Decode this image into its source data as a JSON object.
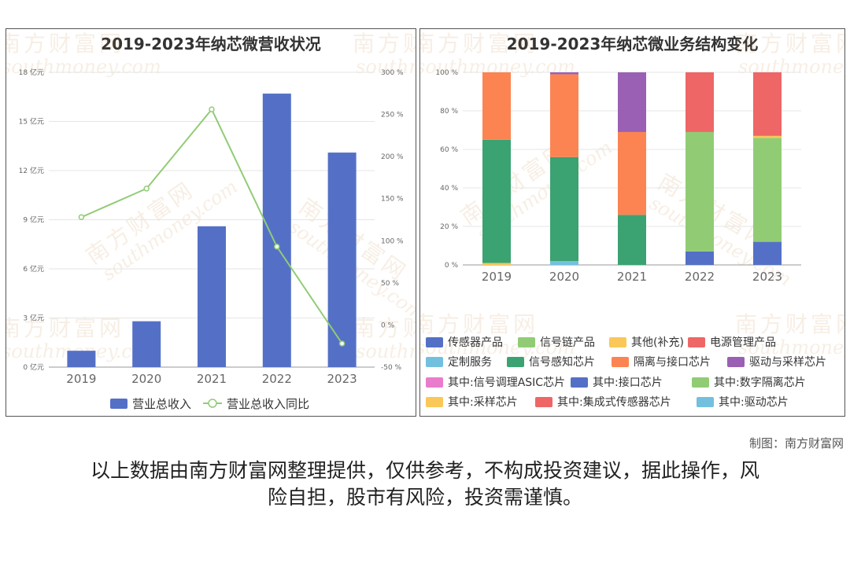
{
  "page": {
    "source_label": "制图：南方财富网",
    "disclaimer_line1": "以上数据由南方财富网整理提供，仅供参考，不构成投资建议，据此操作，风",
    "disclaimer_line2": "险自担，股市有风险，投资需谨慎。"
  },
  "watermark": {
    "brand_cn": "南方财富网",
    "brand_en": "southmoney.com"
  },
  "colors": {
    "bar_blue": "#5470c6",
    "line_green": "#91cc75",
    "grid": "#e6e6e6",
    "axis_text": "#666666"
  },
  "chart_data": [
    {
      "type": "bar",
      "title": "2019-2023年纳芯微营收状况",
      "categories": [
        "2019",
        "2020",
        "2021",
        "2022",
        "2023"
      ],
      "series": [
        {
          "name": "营业总收入",
          "type": "bar",
          "axis": "left",
          "color": "#5470c6",
          "values": [
            1.0,
            2.8,
            8.6,
            16.7,
            13.1
          ]
        },
        {
          "name": "营业总收入同比",
          "type": "line",
          "axis": "right",
          "color": "#91cc75",
          "values": [
            128,
            162,
            256,
            93,
            -22
          ]
        }
      ],
      "y_left": {
        "ylim": [
          0,
          18
        ],
        "ticks": [
          0,
          3,
          6,
          9,
          12,
          15,
          18
        ],
        "tick_labels": [
          "0 亿元",
          "3 亿元",
          "6 亿元",
          "9 亿元",
          "12 亿元",
          "15 亿元",
          "18 亿元"
        ]
      },
      "y_right": {
        "ylim": [
          -50,
          300
        ],
        "ticks": [
          -50,
          0,
          50,
          100,
          150,
          200,
          250,
          300
        ],
        "tick_labels": [
          "-50 %",
          "0 %",
          "50 %",
          "100 %",
          "150 %",
          "200 %",
          "250 %",
          "300 %"
        ]
      },
      "grid": true,
      "legend": "bottom"
    },
    {
      "type": "bar",
      "stacked": true,
      "title": "2019-2023年纳芯微业务结构变化",
      "categories": [
        "2019",
        "2020",
        "2021",
        "2022",
        "2023"
      ],
      "y_axis": {
        "ylim": [
          0,
          100
        ],
        "ticks": [
          0,
          20,
          40,
          60,
          80,
          100
        ],
        "tick_labels": [
          "0 %",
          "20 %",
          "40 %",
          "60 %",
          "80 %",
          "100 %"
        ]
      },
      "series": [
        {
          "name": "传感器产品",
          "color": "#5470c6",
          "values": [
            0,
            0,
            0,
            0,
            0
          ]
        },
        {
          "name": "信号链产品",
          "color": "#91cc75",
          "values": [
            0,
            0,
            0,
            0,
            0
          ]
        },
        {
          "name": "其他(补充)",
          "color": "#fac858",
          "values": [
            1,
            0,
            0,
            0,
            0
          ]
        },
        {
          "name": "电源管理产品",
          "color": "#ee6666",
          "values": [
            0,
            0,
            0,
            0,
            0
          ]
        },
        {
          "name": "定制服务",
          "color": "#73c0de",
          "values": [
            0,
            2,
            0,
            0,
            0
          ]
        },
        {
          "name": "信号感知芯片",
          "color": "#3ba272",
          "values": [
            64,
            54,
            26,
            0,
            0
          ]
        },
        {
          "name": "隔离与接口芯片",
          "color": "#fc8452",
          "values": [
            35,
            43,
            43,
            0,
            0
          ]
        },
        {
          "name": "驱动与采样芯片",
          "color": "#9a60b4",
          "values": [
            0,
            1,
            31,
            0,
            0
          ]
        },
        {
          "name": "其中:信号调理ASIC芯片",
          "color": "#ea7ccc",
          "values": [
            0,
            0,
            0,
            0,
            0
          ]
        },
        {
          "name": "其中:接口芯片",
          "color": "#5470c6",
          "values": [
            0,
            0,
            0,
            7,
            12
          ]
        },
        {
          "name": "其中:数字隔离芯片",
          "color": "#91cc75",
          "values": [
            0,
            0,
            0,
            62,
            54
          ]
        },
        {
          "name": "其中:采样芯片",
          "color": "#fac858",
          "values": [
            0,
            0,
            0,
            0,
            1
          ]
        },
        {
          "name": "其中:集成式传感器芯片",
          "color": "#ee6666",
          "values": [
            0,
            0,
            0,
            31,
            33
          ]
        },
        {
          "name": "其中:驱动芯片",
          "color": "#73c0de",
          "values": [
            0,
            0,
            0,
            0,
            0
          ]
        }
      ],
      "grid": true,
      "legend": "bottom"
    }
  ]
}
